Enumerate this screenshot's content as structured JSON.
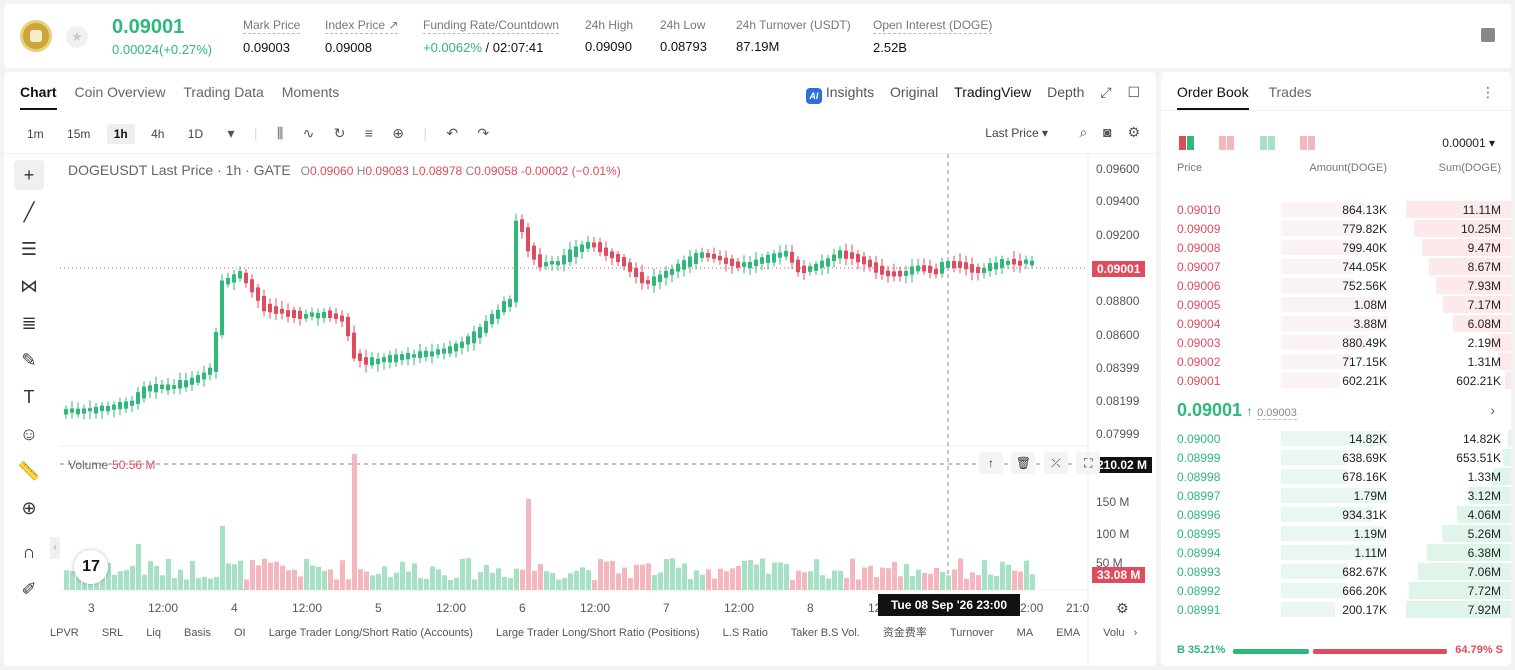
{
  "header": {
    "price": "0.09001",
    "change": "0.00024(+0.27%)",
    "stats": [
      {
        "label": "Mark Price",
        "value": "0.09003"
      },
      {
        "label": "Index Price ↗",
        "value": "0.09008"
      },
      {
        "label": "Funding Rate/Countdown",
        "value_green": "+0.0062%",
        "value": " / 02:07:41"
      },
      {
        "label": "24h High",
        "value": "0.09090"
      },
      {
        "label": "24h Low",
        "value": "0.08793"
      },
      {
        "label": "24h Turnover (USDT)",
        "value": "87.19M"
      },
      {
        "label": "Open Interest (DOGE)",
        "value": "2.52B"
      }
    ]
  },
  "chart_panel": {
    "tabs": [
      "Chart",
      "Coin Overview",
      "Trading Data",
      "Moments"
    ],
    "view_tabs": {
      "insights": "Insights",
      "original": "Original",
      "tradingview": "TradingView",
      "depth": "Depth"
    },
    "timeframes": [
      "1m",
      "15m",
      "1h",
      "4h",
      "1D"
    ],
    "active_timeframe": "1h",
    "price_type": "Last Price ▾",
    "legend": {
      "symbol": "DOGEUSDT Last Price · 1h · GATE",
      "o": "0.09060",
      "h": "0.09083",
      "l": "0.08978",
      "c": "0.09058",
      "chg": "-0.00002 (−0.01%)"
    },
    "volume_legend": {
      "label": "Volume",
      "value": "50.56 M"
    },
    "price_axis": [
      "0.09600",
      "0.09400",
      "0.09200",
      "0.08800",
      "0.08600",
      "0.08399",
      "0.08199",
      "0.07999"
    ],
    "last_price_badge": "0.09001",
    "volume_axis": [
      "150 M",
      "100 M",
      "50 M"
    ],
    "crosshair_volume_badge": "210.02 M",
    "last_volume_badge": "33.08 M",
    "time_axis": [
      "3",
      "12:00",
      "4",
      "12:00",
      "5",
      "12:00",
      "6",
      "12:00",
      "7",
      "12:00",
      "8",
      "12",
      "2:00",
      "21:0"
    ],
    "crosshair_time": "Tue 08 Sep '26   23:00",
    "indicators": [
      "LPVR",
      "SRL",
      "Liq",
      "Basis",
      "OI",
      "Large Trader Long/Short Ratio (Accounts)",
      "Large Trader Long/Short Ratio (Positions)",
      "L.S Ratio",
      "Taker B.S Vol.",
      "资金费率",
      "Turnover",
      "MA",
      "EMA",
      "Volu"
    ]
  },
  "order_book": {
    "tabs": [
      "Order Book",
      "Trades"
    ],
    "precision": "0.00001 ▾",
    "headers": {
      "price": "Price",
      "amount": "Amount(DOGE)",
      "sum": "Sum(DOGE)"
    },
    "asks": [
      {
        "price": "0.09010",
        "amount": "864.13K",
        "sum": "11.11M",
        "depth": 1.0,
        "amount_ratio": 0.78
      },
      {
        "price": "0.09009",
        "amount": "779.82K",
        "sum": "10.25M",
        "depth": 0.92,
        "amount_ratio": 0.7
      },
      {
        "price": "0.09008",
        "amount": "799.40K",
        "sum": "9.47M",
        "depth": 0.85,
        "amount_ratio": 0.72
      },
      {
        "price": "0.09007",
        "amount": "744.05K",
        "sum": "8.67M",
        "depth": 0.78,
        "amount_ratio": 0.67
      },
      {
        "price": "0.09006",
        "amount": "752.56K",
        "sum": "7.93M",
        "depth": 0.71,
        "amount_ratio": 0.68
      },
      {
        "price": "0.09005",
        "amount": "1.08M",
        "sum": "7.17M",
        "depth": 0.65,
        "amount_ratio": 0.97
      },
      {
        "price": "0.09004",
        "amount": "3.88M",
        "sum": "6.08M",
        "depth": 0.55,
        "amount_ratio": 1.0
      },
      {
        "price": "0.09003",
        "amount": "880.49K",
        "sum": "2.19M",
        "depth": 0.2,
        "amount_ratio": 0.8
      },
      {
        "price": "0.09002",
        "amount": "717.15K",
        "sum": "1.31M",
        "depth": 0.12,
        "amount_ratio": 0.65
      },
      {
        "price": "0.09001",
        "amount": "602.21K",
        "sum": "602.21K",
        "depth": 0.06,
        "amount_ratio": 0.55
      }
    ],
    "mid_price": "0.09001",
    "mid_ref": "0.09003",
    "bids": [
      {
        "price": "0.09000",
        "amount": "14.82K",
        "sum": "14.82K",
        "depth": 0.03,
        "amount_ratio": 1.0
      },
      {
        "price": "0.08999",
        "amount": "638.69K",
        "sum": "653.51K",
        "depth": 0.08,
        "amount_ratio": 0.6
      },
      {
        "price": "0.08998",
        "amount": "678.16K",
        "sum": "1.33M",
        "depth": 0.17,
        "amount_ratio": 0.62
      },
      {
        "price": "0.08997",
        "amount": "1.79M",
        "sum": "3.12M",
        "depth": 0.4,
        "amount_ratio": 0.98
      },
      {
        "price": "0.08996",
        "amount": "934.31K",
        "sum": "4.06M",
        "depth": 0.51,
        "amount_ratio": 0.85
      },
      {
        "price": "0.08995",
        "amount": "1.19M",
        "sum": "5.26M",
        "depth": 0.66,
        "amount_ratio": 0.95
      },
      {
        "price": "0.08994",
        "amount": "1.11M",
        "sum": "6.38M",
        "depth": 0.8,
        "amount_ratio": 0.93
      },
      {
        "price": "0.08993",
        "amount": "682.67K",
        "sum": "7.06M",
        "depth": 0.89,
        "amount_ratio": 0.62
      },
      {
        "price": "0.08992",
        "amount": "666.20K",
        "sum": "7.72M",
        "depth": 0.97,
        "amount_ratio": 0.61
      },
      {
        "price": "0.08991",
        "amount": "200.17K",
        "sum": "7.92M",
        "depth": 1.0,
        "amount_ratio": 0.5
      }
    ],
    "buy_ratio": "B 35.21%",
    "sell_ratio": "64.79% S"
  }
}
